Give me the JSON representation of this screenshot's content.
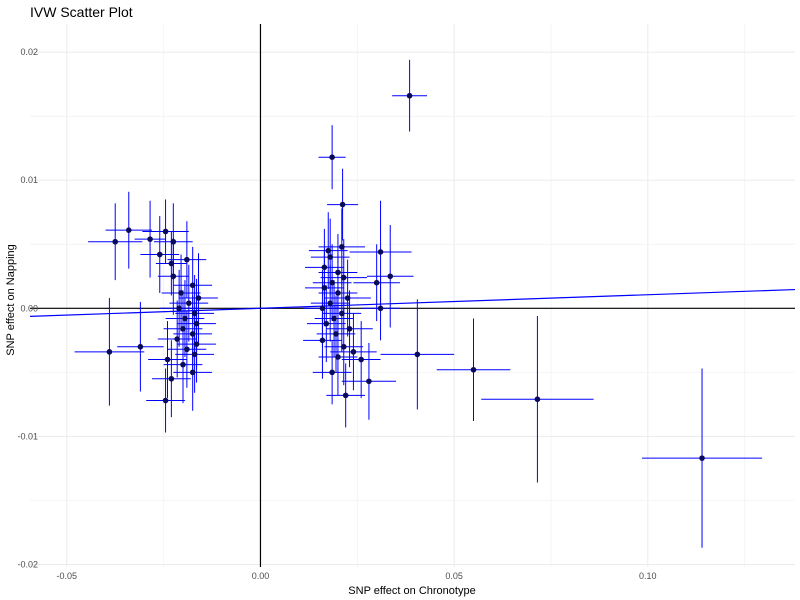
{
  "chart_data": {
    "type": "scatter",
    "title": "IVW Scatter Plot",
    "xlabel": "SNP effect on Chronotype",
    "ylabel": "SNP effect on Napping",
    "xlim": [
      -0.0595,
      0.138
    ],
    "ylim": [
      -0.0202,
      0.0222
    ],
    "xticks": [
      -0.05,
      0.0,
      0.05,
      0.1
    ],
    "xtick_labels": [
      "-0.05",
      "0.00",
      "0.05",
      "0.10"
    ],
    "yticks": [
      -0.02,
      -0.01,
      0.0,
      0.01,
      0.02
    ],
    "ytick_labels": [
      "-0.02",
      "-0.01",
      "0.00",
      "0.01",
      "0.02"
    ],
    "grid": true,
    "reference_lines": {
      "x": 0,
      "y": 0
    },
    "fit_line": {
      "slope": 0.0106,
      "intercept": 0
    },
    "colors": {
      "points": "#0a0a5a",
      "error_bars": "#0000ff",
      "lines": "#000000",
      "grid": "#ebebeb"
    },
    "points": [
      {
        "x": 0.0385,
        "y": 0.0166,
        "xerr": 0.0045,
        "yerr": 0.0028
      },
      {
        "x": 0.0185,
        "y": 0.0118,
        "xerr": 0.0035,
        "yerr": 0.0025
      },
      {
        "x": 0.0212,
        "y": 0.0081,
        "xerr": 0.004,
        "yerr": 0.0028
      },
      {
        "x": -0.034,
        "y": 0.0061,
        "xerr": 0.006,
        "yerr": 0.003
      },
      {
        "x": -0.0245,
        "y": 0.006,
        "xerr": 0.006,
        "yerr": 0.0025
      },
      {
        "x": -0.0285,
        "y": 0.0054,
        "xerr": 0.004,
        "yerr": 0.003
      },
      {
        "x": -0.0375,
        "y": 0.0052,
        "xerr": 0.007,
        "yerr": 0.003
      },
      {
        "x": -0.0225,
        "y": 0.0052,
        "xerr": 0.005,
        "yerr": 0.003
      },
      {
        "x": -0.026,
        "y": 0.0042,
        "xerr": 0.005,
        "yerr": 0.003
      },
      {
        "x": -0.019,
        "y": 0.0038,
        "xerr": 0.005,
        "yerr": 0.003
      },
      {
        "x": -0.023,
        "y": 0.0035,
        "xerr": 0.004,
        "yerr": 0.0025
      },
      {
        "x": -0.0225,
        "y": 0.0025,
        "xerr": 0.004,
        "yerr": 0.003
      },
      {
        "x": -0.0175,
        "y": 0.0018,
        "xerr": 0.005,
        "yerr": 0.003
      },
      {
        "x": -0.0205,
        "y": 0.0012,
        "xerr": 0.005,
        "yerr": 0.003
      },
      {
        "x": -0.016,
        "y": 0.0008,
        "xerr": 0.005,
        "yerr": 0.0035
      },
      {
        "x": -0.0185,
        "y": 0.0004,
        "xerr": 0.005,
        "yerr": 0.003
      },
      {
        "x": -0.021,
        "y": 0.0,
        "xerr": 0.005,
        "yerr": 0.003
      },
      {
        "x": -0.017,
        "y": -0.0004,
        "xerr": 0.005,
        "yerr": 0.003
      },
      {
        "x": -0.0195,
        "y": -0.0008,
        "xerr": 0.005,
        "yerr": 0.003
      },
      {
        "x": -0.0165,
        "y": -0.0012,
        "xerr": 0.005,
        "yerr": 0.0035
      },
      {
        "x": -0.02,
        "y": -0.0016,
        "xerr": 0.005,
        "yerr": 0.003
      },
      {
        "x": -0.0175,
        "y": -0.002,
        "xerr": 0.005,
        "yerr": 0.003
      },
      {
        "x": -0.0215,
        "y": -0.0024,
        "xerr": 0.005,
        "yerr": 0.003
      },
      {
        "x": -0.0165,
        "y": -0.0028,
        "xerr": 0.005,
        "yerr": 0.003
      },
      {
        "x": -0.019,
        "y": -0.0032,
        "xerr": 0.005,
        "yerr": 0.003
      },
      {
        "x": -0.017,
        "y": -0.0036,
        "xerr": 0.005,
        "yerr": 0.003
      },
      {
        "x": -0.024,
        "y": -0.004,
        "xerr": 0.005,
        "yerr": 0.003
      },
      {
        "x": -0.02,
        "y": -0.0044,
        "xerr": 0.005,
        "yerr": 0.003
      },
      {
        "x": -0.0175,
        "y": -0.005,
        "xerr": 0.005,
        "yerr": 0.003
      },
      {
        "x": -0.023,
        "y": -0.0055,
        "xerr": 0.005,
        "yerr": 0.003
      },
      {
        "x": -0.0245,
        "y": -0.0072,
        "xerr": 0.005,
        "yerr": 0.0025
      },
      {
        "x": -0.039,
        "y": -0.0034,
        "xerr": 0.009,
        "yerr": 0.0042
      },
      {
        "x": -0.031,
        "y": -0.003,
        "xerr": 0.006,
        "yerr": 0.0035
      },
      {
        "x": 0.0175,
        "y": 0.0045,
        "xerr": 0.005,
        "yerr": 0.003
      },
      {
        "x": 0.021,
        "y": 0.0048,
        "xerr": 0.006,
        "yerr": 0.003
      },
      {
        "x": 0.018,
        "y": 0.004,
        "xerr": 0.005,
        "yerr": 0.003
      },
      {
        "x": 0.0165,
        "y": 0.0032,
        "xerr": 0.005,
        "yerr": 0.003
      },
      {
        "x": 0.02,
        "y": 0.0028,
        "xerr": 0.005,
        "yerr": 0.003
      },
      {
        "x": 0.0215,
        "y": 0.0024,
        "xerr": 0.006,
        "yerr": 0.003
      },
      {
        "x": 0.0185,
        "y": 0.002,
        "xerr": 0.005,
        "yerr": 0.003
      },
      {
        "x": 0.0165,
        "y": 0.0016,
        "xerr": 0.005,
        "yerr": 0.003
      },
      {
        "x": 0.02,
        "y": 0.0012,
        "xerr": 0.005,
        "yerr": 0.003
      },
      {
        "x": 0.0225,
        "y": 0.0008,
        "xerr": 0.006,
        "yerr": 0.003
      },
      {
        "x": 0.018,
        "y": 0.0004,
        "xerr": 0.005,
        "yerr": 0.003
      },
      {
        "x": 0.016,
        "y": 0.0,
        "xerr": 0.005,
        "yerr": 0.003
      },
      {
        "x": 0.021,
        "y": -0.0004,
        "xerr": 0.005,
        "yerr": 0.003
      },
      {
        "x": 0.019,
        "y": -0.0008,
        "xerr": 0.005,
        "yerr": 0.003
      },
      {
        "x": 0.017,
        "y": -0.0012,
        "xerr": 0.005,
        "yerr": 0.003
      },
      {
        "x": 0.023,
        "y": -0.0016,
        "xerr": 0.006,
        "yerr": 0.003
      },
      {
        "x": 0.0195,
        "y": -0.002,
        "xerr": 0.005,
        "yerr": 0.003
      },
      {
        "x": 0.016,
        "y": -0.0025,
        "xerr": 0.005,
        "yerr": 0.003
      },
      {
        "x": 0.0215,
        "y": -0.003,
        "xerr": 0.005,
        "yerr": 0.003
      },
      {
        "x": 0.024,
        "y": -0.0034,
        "xerr": 0.006,
        "yerr": 0.003
      },
      {
        "x": 0.02,
        "y": -0.0038,
        "xerr": 0.005,
        "yerr": 0.003
      },
      {
        "x": 0.026,
        "y": -0.004,
        "xerr": 0.005,
        "yerr": 0.003
      },
      {
        "x": 0.0185,
        "y": -0.005,
        "xerr": 0.005,
        "yerr": 0.0025
      },
      {
        "x": 0.022,
        "y": -0.0068,
        "xerr": 0.005,
        "yerr": 0.0025
      },
      {
        "x": 0.028,
        "y": -0.0057,
        "xerr": 0.007,
        "yerr": 0.003
      },
      {
        "x": 0.031,
        "y": 0.0044,
        "xerr": 0.008,
        "yerr": 0.004
      },
      {
        "x": 0.0335,
        "y": 0.0025,
        "xerr": 0.006,
        "yerr": 0.004
      },
      {
        "x": 0.03,
        "y": 0.002,
        "xerr": 0.006,
        "yerr": 0.003
      },
      {
        "x": 0.031,
        "y": 0.0,
        "xerr": 0.005,
        "yerr": 0.0025
      },
      {
        "x": 0.0405,
        "y": -0.0036,
        "xerr": 0.0095,
        "yerr": 0.0043
      },
      {
        "x": 0.055,
        "y": -0.0048,
        "xerr": 0.0095,
        "yerr": 0.004
      },
      {
        "x": 0.0715,
        "y": -0.0071,
        "xerr": 0.0145,
        "yerr": 0.0065
      },
      {
        "x": 0.114,
        "y": -0.0117,
        "xerr": 0.0155,
        "yerr": 0.007
      }
    ]
  }
}
